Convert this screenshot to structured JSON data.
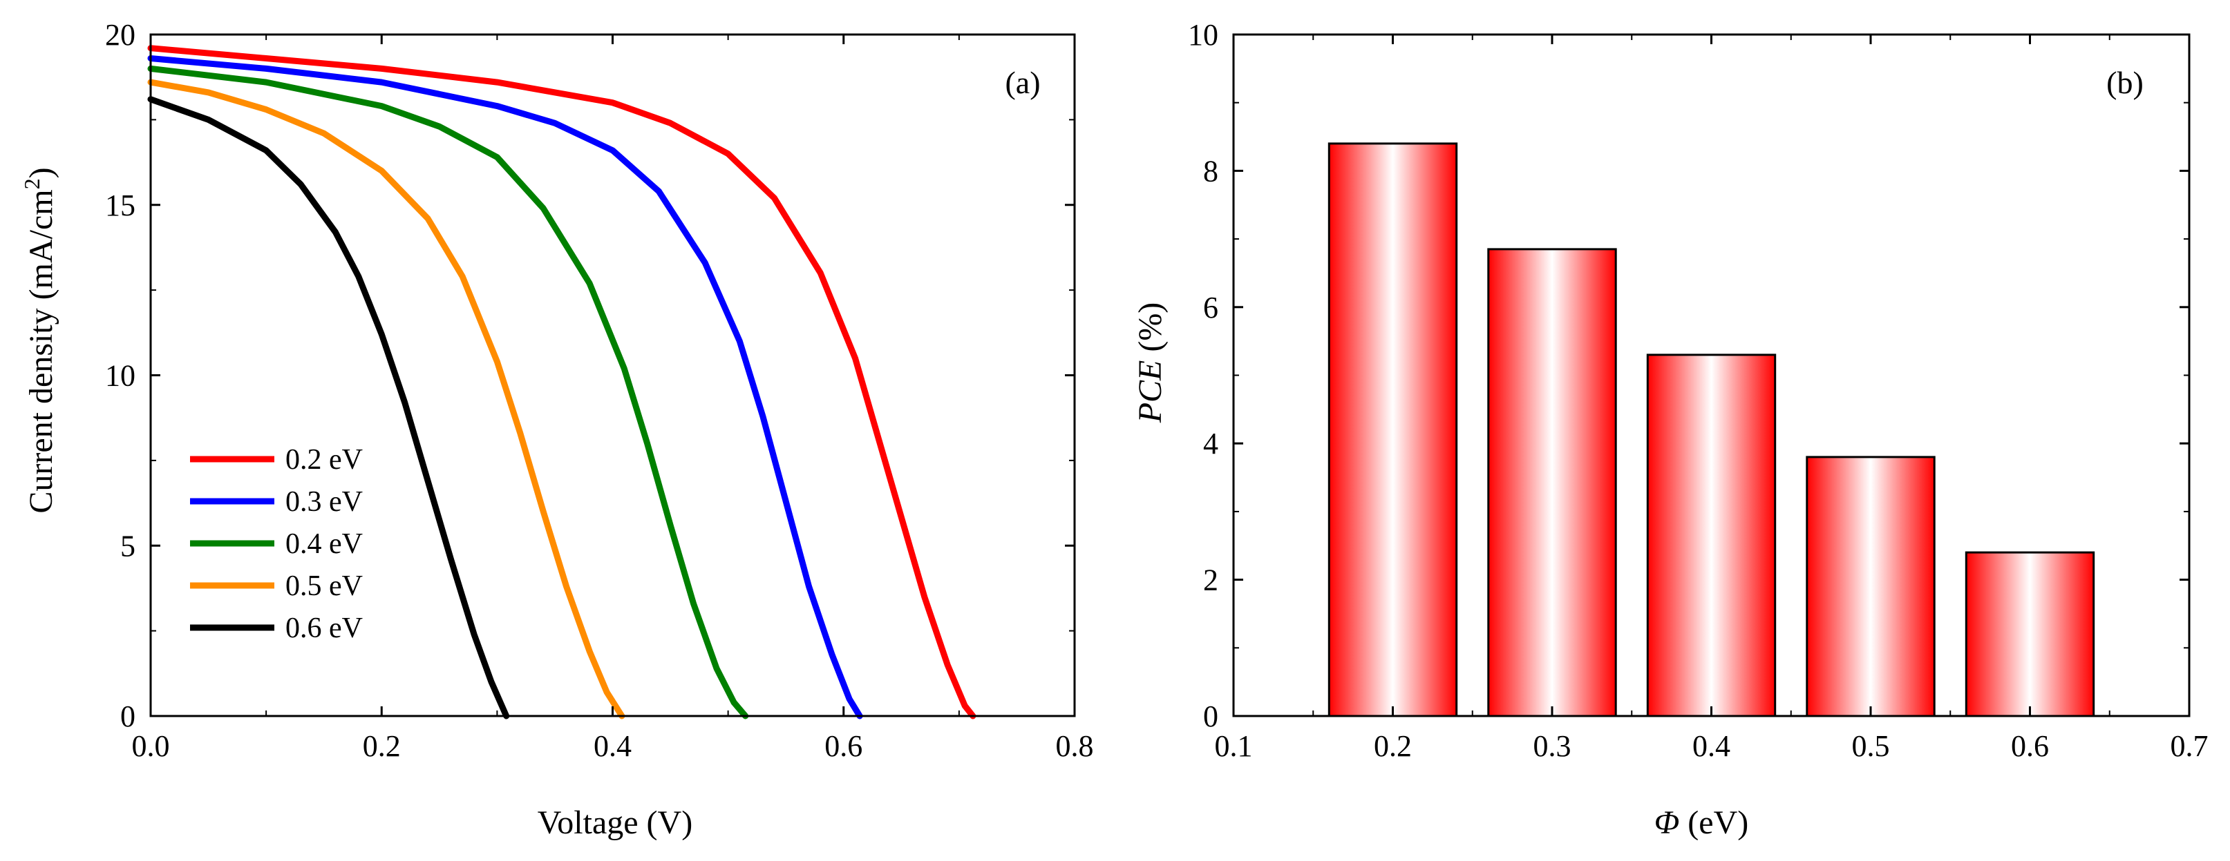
{
  "chart_data": [
    {
      "panel": "(a)",
      "type": "line",
      "xlabel": "Voltage (V)",
      "ylabel": "Current density (mA/cm²)",
      "ylabel_main": "Current density (mA/cm",
      "ylabel_sup": "2",
      "ylabel_end": ")",
      "xlim": [
        0.0,
        0.8
      ],
      "ylim": [
        0,
        20
      ],
      "xticks": [
        0.0,
        0.2,
        0.4,
        0.6,
        0.8
      ],
      "xtick_labels": [
        "0.0",
        "0.2",
        "0.4",
        "0.6",
        "0.8"
      ],
      "yticks": [
        0,
        5,
        10,
        15,
        20
      ],
      "ytick_labels": [
        "0",
        "5",
        "10",
        "15",
        "20"
      ],
      "legend_position": "bottom-left",
      "grid": false,
      "series": [
        {
          "name": "0.2 eV",
          "color": "#ff0000",
          "x": [
            0.0,
            0.1,
            0.2,
            0.3,
            0.4,
            0.45,
            0.5,
            0.54,
            0.58,
            0.61,
            0.64,
            0.67,
            0.69,
            0.705,
            0.712
          ],
          "y": [
            19.6,
            19.3,
            19.0,
            18.6,
            18.0,
            17.4,
            16.5,
            15.2,
            13.0,
            10.5,
            7.0,
            3.5,
            1.5,
            0.3,
            0.0
          ]
        },
        {
          "name": "0.3 eV",
          "color": "#0000ff",
          "x": [
            0.0,
            0.1,
            0.2,
            0.3,
            0.35,
            0.4,
            0.44,
            0.48,
            0.51,
            0.53,
            0.55,
            0.57,
            0.59,
            0.605,
            0.614
          ],
          "y": [
            19.3,
            19.0,
            18.6,
            17.9,
            17.4,
            16.6,
            15.4,
            13.3,
            11.0,
            8.8,
            6.3,
            3.8,
            1.8,
            0.5,
            0.0
          ]
        },
        {
          "name": "0.4 eV",
          "color": "#008000",
          "x": [
            0.0,
            0.1,
            0.2,
            0.25,
            0.3,
            0.34,
            0.38,
            0.41,
            0.43,
            0.45,
            0.47,
            0.49,
            0.505,
            0.515
          ],
          "y": [
            19.0,
            18.6,
            17.9,
            17.3,
            16.4,
            14.9,
            12.7,
            10.2,
            8.0,
            5.6,
            3.3,
            1.4,
            0.4,
            0.0
          ]
        },
        {
          "name": "0.5 eV",
          "color": "#ff8c00",
          "x": [
            0.0,
            0.05,
            0.1,
            0.15,
            0.2,
            0.24,
            0.27,
            0.3,
            0.32,
            0.34,
            0.36,
            0.38,
            0.395,
            0.408
          ],
          "y": [
            18.6,
            18.3,
            17.8,
            17.1,
            16.0,
            14.6,
            12.9,
            10.4,
            8.3,
            6.0,
            3.8,
            1.9,
            0.7,
            0.0
          ]
        },
        {
          "name": "0.6 eV",
          "color": "#000000",
          "x": [
            0.0,
            0.05,
            0.1,
            0.13,
            0.16,
            0.18,
            0.2,
            0.22,
            0.24,
            0.26,
            0.28,
            0.295,
            0.308
          ],
          "y": [
            18.1,
            17.5,
            16.6,
            15.6,
            14.2,
            12.9,
            11.2,
            9.2,
            6.9,
            4.6,
            2.4,
            1.0,
            0.0
          ]
        }
      ]
    },
    {
      "panel": "(b)",
      "type": "bar",
      "xlabel_symbol": "Φ",
      "xlabel_unit": " (eV)",
      "ylabel_symbol": "PCE",
      "ylabel_unit": " (%)",
      "xlim": [
        0.1,
        0.7
      ],
      "ylim": [
        0,
        10
      ],
      "xticks": [
        0.1,
        0.2,
        0.3,
        0.4,
        0.5,
        0.6,
        0.7
      ],
      "xtick_labels": [
        "0.1",
        "0.2",
        "0.3",
        "0.4",
        "0.5",
        "0.6",
        "0.7"
      ],
      "yticks": [
        0,
        2,
        4,
        6,
        8,
        10
      ],
      "ytick_labels": [
        "0",
        "2",
        "4",
        "6",
        "8",
        "10"
      ],
      "bar_width": 0.08,
      "x": [
        0.2,
        0.3,
        0.4,
        0.5,
        0.6
      ],
      "values": [
        8.4,
        6.85,
        5.3,
        3.8,
        2.4
      ],
      "bar_color": "#ff0000",
      "grid": false
    }
  ]
}
